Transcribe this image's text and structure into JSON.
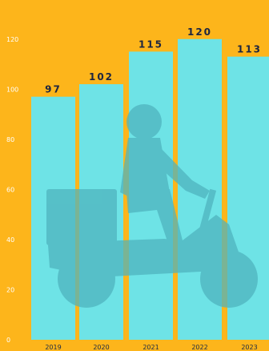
{
  "chart_data": {
    "type": "bar",
    "categories": [
      "2019",
      "2020",
      "2021",
      "2022",
      "2023"
    ],
    "values": [
      97,
      102,
      115,
      120,
      113
    ],
    "y_ticks": [
      0,
      20,
      40,
      60,
      80,
      100,
      120
    ],
    "ylim": [
      0,
      126
    ],
    "grid": false,
    "legend": "none",
    "colors": {
      "background": "#FDB51B",
      "bar": "#6EE3E6",
      "value_label": "#1E2640",
      "tick_label": "#FFFFFF",
      "category_label": "#1B2A44",
      "silhouette": "#4FB4BE"
    },
    "decoration": "delivery-scooter-rider-silhouette"
  }
}
